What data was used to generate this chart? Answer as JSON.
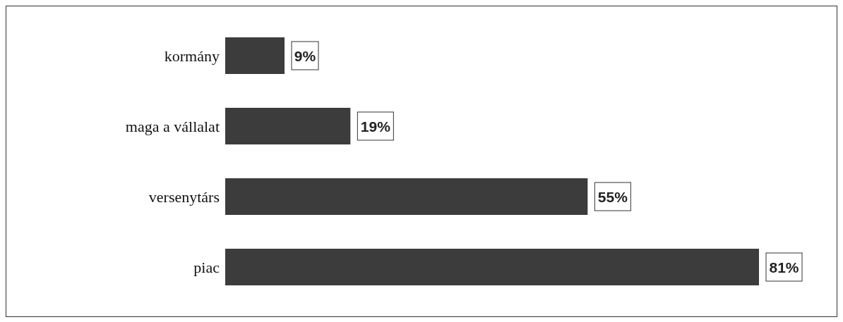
{
  "chart_data": {
    "type": "bar",
    "orientation": "horizontal",
    "categories": [
      "kormány",
      "maga a vállalat",
      "versenytárs",
      "piac"
    ],
    "values": [
      9,
      19,
      55,
      81
    ],
    "color": "#3c3c3c",
    "value_labels": [
      "9%",
      "19%",
      "55%",
      "81%"
    ]
  }
}
